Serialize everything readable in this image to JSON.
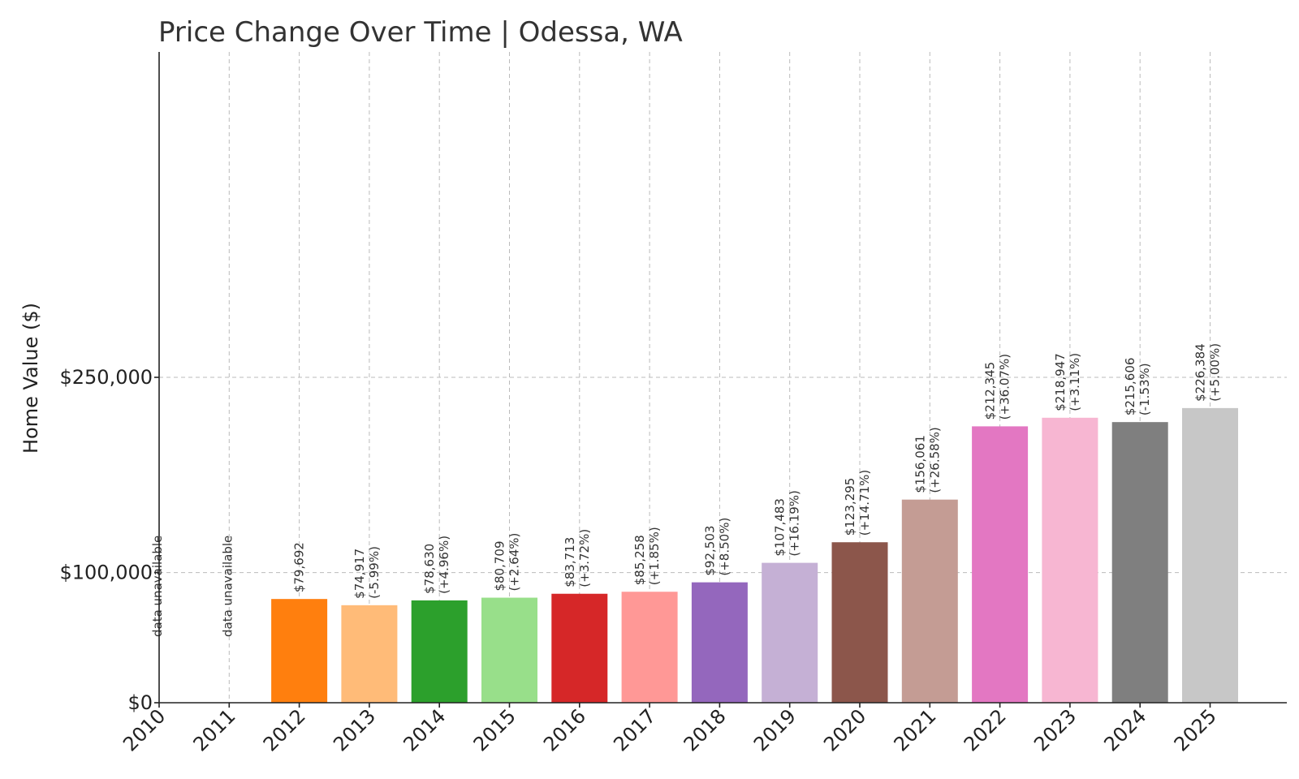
{
  "chart_data": {
    "type": "bar",
    "title": "Price Change Over Time | Odessa, WA",
    "xlabel": "",
    "ylabel": "Home Value ($)",
    "ylim": [
      0,
      500000
    ],
    "yticks": [
      0,
      100000,
      250000
    ],
    "ytick_labels": [
      "$0",
      "$100,000",
      "$250,000"
    ],
    "grid": true,
    "categories": [
      "2010",
      "2011",
      "2012",
      "2013",
      "2014",
      "2015",
      "2016",
      "2017",
      "2018",
      "2019",
      "2020",
      "2021",
      "2022",
      "2023",
      "2024",
      "2025"
    ],
    "values": [
      null,
      null,
      79692,
      74917,
      78630,
      80709,
      83713,
      85258,
      92503,
      107483,
      123295,
      156061,
      212345,
      218947,
      215606,
      226384
    ],
    "value_labels": [
      "",
      "",
      "$79,692",
      "$74,917",
      "$78,630",
      "$80,709",
      "$83,713",
      "$85,258",
      "$92,503",
      "$107,483",
      "$123,295",
      "$156,061",
      "$212,345",
      "$218,947",
      "$215,606",
      "$226,384"
    ],
    "change_labels": [
      "",
      "",
      "",
      "(-5.99%)",
      "(+4.96%)",
      "(+2.64%)",
      "(+3.72%)",
      "(+1.85%)",
      "(+8.50%)",
      "(+16.19%)",
      "(+14.71%)",
      "(+26.58%)",
      "(+36.07%)",
      "(+3.11%)",
      "(-1.53%)",
      "(+5.00%)"
    ],
    "unavailable_label": "data unavailable",
    "colors": [
      "#1f77b4",
      "#aec7e8",
      "#ff7f0e",
      "#ffbb78",
      "#2ca02c",
      "#98df8a",
      "#d62728",
      "#ff9896",
      "#9467bd",
      "#c5b0d5",
      "#8c564b",
      "#c49c94",
      "#e377c2",
      "#f7b6d2",
      "#7f7f7f",
      "#c7c7c7"
    ]
  }
}
